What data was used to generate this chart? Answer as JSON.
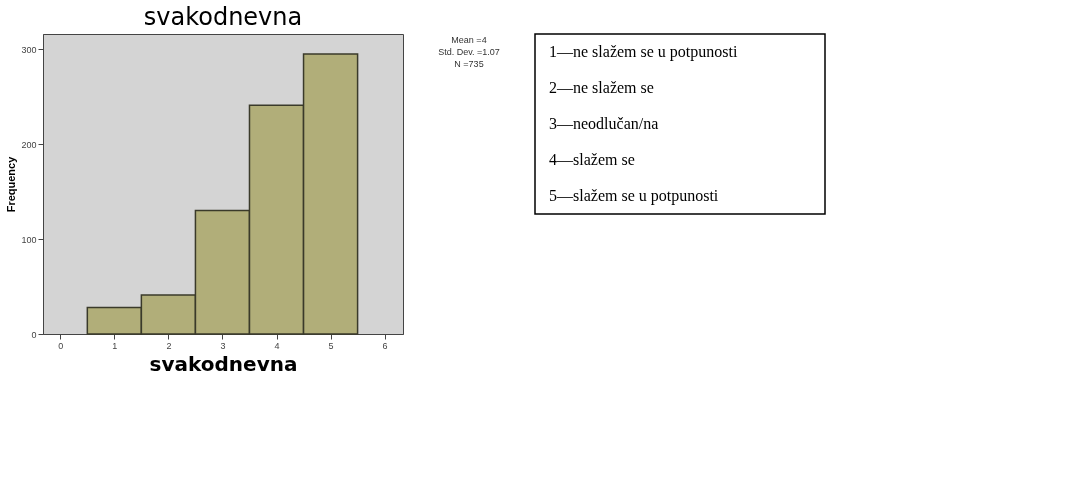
{
  "chart_data": {
    "type": "histogram",
    "title": "svakodnevna",
    "xlabel": "svakodnevna",
    "ylabel": "Frequency",
    "bins": [
      0.5,
      1.5,
      2.5,
      3.5,
      4.5,
      5.5
    ],
    "values": [
      28,
      41,
      130,
      241,
      295
    ],
    "color": "#b1ae79",
    "xlim": [
      -0.32,
      6.34
    ],
    "xticks": [
      0,
      1,
      2,
      3,
      4,
      5,
      6
    ],
    "ylim": [
      0,
      316
    ],
    "yticks": [
      0,
      100,
      200,
      300
    ],
    "grid": false,
    "annotations": [
      "Mean =4",
      "Std. Dev. =1.07",
      "N =735",
      "1—ne slažem se u  potpunosti",
      "2—ne slažem se",
      "3—neodlučan/na",
      "4—slažem se",
      "5—slažem se u potpunosti"
    ]
  }
}
